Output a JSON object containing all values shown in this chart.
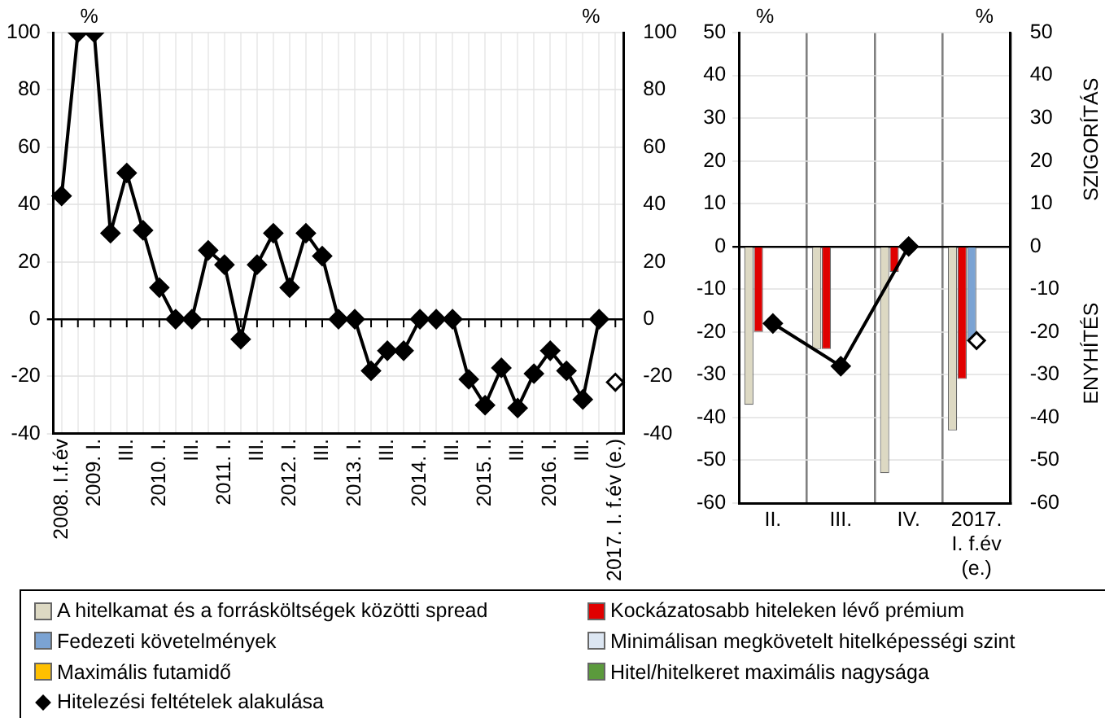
{
  "chart_data": [
    {
      "type": "line",
      "categories": [
        "2008. I.f.év",
        null,
        "2009. I.",
        null,
        "III.",
        null,
        "2010. I.",
        null,
        "III.",
        null,
        "2011. I.",
        null,
        "III.",
        null,
        "2012. I.",
        null,
        "III.",
        null,
        "2013. I.",
        null,
        "III.",
        null,
        "2014. I.",
        null,
        "III.",
        null,
        "2015. I.",
        null,
        "III.",
        null,
        "2016. I.",
        null,
        "III.",
        null,
        "2017. I. f.év (e.)"
      ],
      "series": [
        {
          "type": "line",
          "color": "#000000",
          "values": [
            43,
            100,
            100,
            30,
            51,
            31,
            11,
            0,
            0,
            24,
            19,
            -7,
            19,
            30,
            11,
            30,
            22,
            0,
            0,
            -18,
            -11,
            -11,
            0,
            0,
            0,
            -21,
            -30,
            -17,
            -31,
            -19,
            -11,
            -18,
            -28,
            0,
            null
          ]
        },
        {
          "type": "scatter",
          "color": "#000000",
          "values": [
            null,
            null,
            null,
            null,
            null,
            null,
            null,
            null,
            null,
            null,
            null,
            null,
            null,
            null,
            null,
            null,
            null,
            null,
            null,
            null,
            null,
            null,
            null,
            null,
            null,
            null,
            null,
            null,
            null,
            null,
            null,
            null,
            null,
            null,
            -22
          ]
        }
      ],
      "ylim": [
        -40,
        100
      ],
      "yticks": [
        -40,
        -20,
        0,
        20,
        40,
        60,
        80,
        100
      ],
      "y2lim": [
        -40,
        100
      ],
      "y2ticks": [
        -40,
        -20,
        0,
        20,
        40,
        60,
        80,
        100
      ],
      "annotations": [
        "%",
        "%"
      ],
      "grid": true,
      "marker": "diamond",
      "legend": false
    },
    {
      "type": "bar",
      "categories": [
        "II.",
        "III.",
        "IV.",
        "2017. I. f.év (e.)"
      ],
      "series": [
        {
          "name": "A hitelkamat és a forrásköltségek közötti spread",
          "type": "bar",
          "color": "#ddd9c3",
          "values": [
            -37,
            -24,
            -53,
            -43
          ]
        },
        {
          "name": "Kockázatosabb hiteleken lévő prémium",
          "type": "bar",
          "color": "#e00000",
          "values": [
            -20,
            -24,
            -6,
            -31
          ]
        },
        {
          "name": "Fedezeti követelmények",
          "type": "bar",
          "color": "#7ba3d3",
          "values": [
            0,
            0,
            0,
            -22
          ]
        },
        {
          "name": "Minimálisan megkövetelt hitelképességi szint",
          "type": "bar",
          "color": "#dce6f2",
          "values": [
            0,
            0,
            0,
            0
          ]
        },
        {
          "name": "Maximális futamidő",
          "type": "bar",
          "color": "#ffc000",
          "values": [
            0,
            0,
            0,
            0
          ]
        },
        {
          "name": "Hitel/hitelkeret maximális nagysága",
          "type": "bar",
          "color": "#5b9a3c",
          "values": [
            0,
            0,
            0,
            0
          ]
        },
        {
          "name": "Hitelezési feltételek alakulása",
          "type": "line",
          "color": "#000000",
          "values": [
            -18,
            -28,
            0,
            null
          ]
        },
        {
          "type": "scatter",
          "color": "#000000",
          "values": [
            null,
            null,
            null,
            -22
          ]
        }
      ],
      "ylim": [
        -60,
        50
      ],
      "yticks": [
        -60,
        -50,
        -40,
        -30,
        -20,
        -10,
        0,
        10,
        20,
        30,
        40,
        50
      ],
      "y2lim": [
        -60,
        50
      ],
      "y2ticks": [
        -60,
        -50,
        -40,
        -30,
        -20,
        -10,
        0,
        10,
        20,
        30,
        40,
        50
      ],
      "y2label": "SZIGORÍTÁS",
      "annotations": [
        "%",
        "%",
        "ENYHÍTÉS"
      ],
      "grid": true,
      "marker": "diamond",
      "legend": "bottom"
    }
  ]
}
